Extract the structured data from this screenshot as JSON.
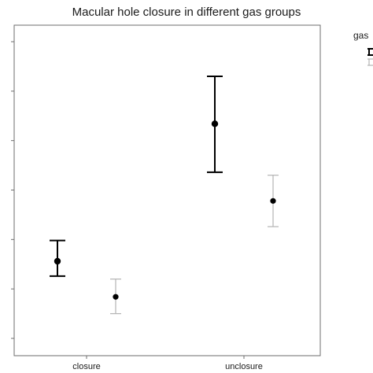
{
  "chart_data": {
    "type": "errorbar",
    "title": "Macular hole closure in different gas groups",
    "xlabel": "",
    "ylabel": "",
    "categories": [
      "closure",
      "unclosure"
    ],
    "ylim": [
      0,
      3
    ],
    "yticks": [
      0,
      0.5,
      1,
      1.5,
      2,
      2.5,
      3
    ],
    "grid": false,
    "legend": {
      "title": "gas",
      "position": "top-right"
    },
    "series": [
      {
        "color": "#000000",
        "points": [
          {
            "category": "closure",
            "mean": 0.78,
            "lower": 0.63,
            "upper": 0.99
          },
          {
            "category": "unclosure",
            "mean": 2.17,
            "lower": 1.68,
            "upper": 2.65
          }
        ]
      },
      {
        "color": "#b4b4b4",
        "points": [
          {
            "category": "closure",
            "mean": 0.42,
            "lower": 0.25,
            "upper": 0.6
          },
          {
            "category": "unclosure",
            "mean": 1.39,
            "lower": 1.13,
            "upper": 1.65
          }
        ]
      }
    ]
  }
}
